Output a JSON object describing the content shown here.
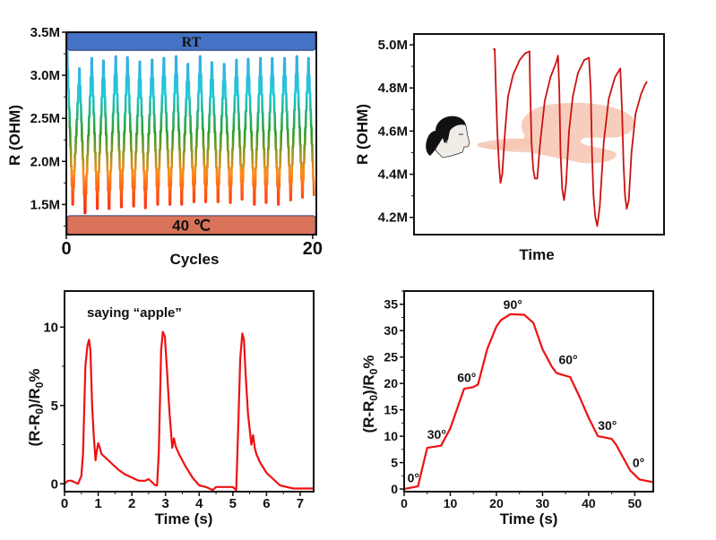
{
  "chart_data": [
    {
      "type": "line",
      "id": "temperature-cycling",
      "title": "",
      "xlabel": "Cycles",
      "ylabel": "R (OHM)",
      "xlim": [
        0,
        20.3
      ],
      "ylim": [
        1.15,
        3.5
      ],
      "x_ticks": [
        {
          "v": 0,
          "label": "0"
        },
        {
          "v": 20,
          "label": "20"
        }
      ],
      "y_ticks": [
        {
          "v": 1.5,
          "label": "1.5M"
        },
        {
          "v": 2.0,
          "label": "2.0M"
        },
        {
          "v": 2.5,
          "label": "2.5M"
        },
        {
          "v": 3.0,
          "label": "3.0M"
        },
        {
          "v": 3.5,
          "label": "3.5M"
        }
      ],
      "bands": [
        {
          "label": "RT",
          "from": 3.29,
          "to": 3.5,
          "color": "#4472c4"
        },
        {
          "label": "40 ℃",
          "from": 1.15,
          "to": 1.37,
          "color": "#d9735a"
        }
      ],
      "gradient": [
        "#ff2010",
        "#ff8c1a",
        "#2e9e2a",
        "#1fc9d8",
        "#3aa8e8"
      ],
      "series": [
        {
          "name": "R",
          "peaks_x": [
            0.05,
            1.05,
            2.05,
            3.0,
            4.0,
            4.95,
            5.95,
            6.95,
            7.9,
            8.9,
            9.85,
            10.85,
            11.8,
            12.8,
            13.8,
            14.75,
            15.75,
            16.7,
            17.7,
            18.7,
            19.65
          ],
          "peaks_y": [
            3.28,
            3.08,
            3.2,
            3.17,
            3.22,
            3.21,
            3.16,
            3.18,
            3.2,
            3.22,
            3.13,
            3.22,
            3.15,
            3.13,
            3.18,
            3.19,
            3.2,
            3.2,
            3.2,
            3.22,
            3.2
          ],
          "valleys_x": [
            0.5,
            1.5,
            2.5,
            3.45,
            4.45,
            5.45,
            6.4,
            7.4,
            8.4,
            9.35,
            10.35,
            11.3,
            12.3,
            13.3,
            14.25,
            15.25,
            16.2,
            17.2,
            18.2,
            19.15,
            20.1
          ],
          "valleys_y": [
            1.5,
            1.4,
            1.45,
            1.45,
            1.47,
            1.48,
            1.46,
            1.5,
            1.5,
            1.5,
            1.53,
            1.53,
            1.53,
            1.52,
            1.56,
            1.5,
            1.52,
            1.5,
            1.55,
            1.58,
            1.6
          ]
        }
      ]
    },
    {
      "type": "line",
      "id": "breathing-response",
      "title": "",
      "xlabel": "Time",
      "ylabel": "R (OHM)",
      "xlim": [
        0,
        100
      ],
      "ylim": [
        4.12,
        5.05
      ],
      "x_ticks": [],
      "y_ticks": [
        {
          "v": 4.2,
          "label": "4.2M"
        },
        {
          "v": 4.4,
          "label": "4.4M"
        },
        {
          "v": 4.6,
          "label": "4.6M"
        },
        {
          "v": 4.8,
          "label": "4.8M"
        },
        {
          "v": 5.0,
          "label": "5.0M"
        }
      ],
      "illustration": "person-breathing-icon",
      "series": [
        {
          "name": "R",
          "color": "#cc1111",
          "x": [
            31.6,
            32.3,
            32.7,
            33.3,
            34.0,
            34.6,
            35.3,
            36.4,
            37.6,
            39.6,
            42.3,
            44.4,
            46.2,
            46.4,
            47.0,
            47.7,
            48.4,
            49.3,
            50.5,
            52.3,
            54.6,
            56.9,
            57.6,
            58.1,
            58.6,
            59.3,
            60.0,
            60.8,
            62.0,
            63.5,
            65.6,
            68.1,
            70.0,
            70.7,
            71.2,
            71.8,
            72.5,
            73.3,
            74.3,
            75.9,
            77.9,
            80.4,
            82.5,
            83.2,
            83.8,
            84.4,
            85.1,
            85.9,
            87.0,
            88.6,
            90.8,
            92.2,
            93.2
          ],
          "y": [
            4.98,
            4.98,
            4.82,
            4.6,
            4.44,
            4.36,
            4.4,
            4.6,
            4.76,
            4.86,
            4.93,
            4.96,
            4.97,
            4.82,
            4.55,
            4.42,
            4.38,
            4.38,
            4.55,
            4.74,
            4.85,
            4.92,
            4.95,
            4.8,
            4.5,
            4.33,
            4.28,
            4.35,
            4.6,
            4.76,
            4.87,
            4.93,
            4.94,
            4.78,
            4.5,
            4.3,
            4.2,
            4.16,
            4.25,
            4.55,
            4.75,
            4.85,
            4.89,
            4.7,
            4.45,
            4.3,
            4.24,
            4.28,
            4.5,
            4.68,
            4.77,
            4.81,
            4.83
          ]
        }
      ]
    },
    {
      "type": "line",
      "id": "speech-response",
      "title": "",
      "annotation": "saying “apple”",
      "xlabel": "Time (s)",
      "ylabel": "(R-R0)/R0%",
      "xlim": [
        0,
        7.4
      ],
      "ylim": [
        -0.5,
        12.3
      ],
      "x_ticks": [
        {
          "v": 0,
          "label": "0"
        },
        {
          "v": 1,
          "label": "1"
        },
        {
          "v": 2,
          "label": "2"
        },
        {
          "v": 3,
          "label": "3"
        },
        {
          "v": 4,
          "label": "4"
        },
        {
          "v": 5,
          "label": "5"
        },
        {
          "v": 6,
          "label": "6"
        },
        {
          "v": 7,
          "label": "7"
        }
      ],
      "y_ticks": [
        {
          "v": 0,
          "label": "0"
        },
        {
          "v": 5,
          "label": "5"
        },
        {
          "v": 10,
          "label": "10"
        }
      ],
      "series": [
        {
          "name": "response",
          "color": "#ee1111",
          "x": [
            0,
            0.1,
            0.2,
            0.3,
            0.4,
            0.5,
            0.55,
            0.62,
            0.68,
            0.73,
            0.77,
            0.82,
            0.87,
            0.92,
            0.95,
            1.0,
            1.05,
            1.1,
            1.2,
            1.4,
            1.6,
            1.8,
            2.0,
            2.2,
            2.4,
            2.5,
            2.6,
            2.7,
            2.75,
            2.8,
            2.87,
            2.92,
            2.98,
            3.05,
            3.12,
            3.2,
            3.25,
            3.3,
            3.4,
            3.6,
            3.8,
            4.0,
            4.2,
            4.4,
            4.5,
            4.7,
            5.0,
            5.1,
            5.15,
            5.22,
            5.28,
            5.33,
            5.38,
            5.45,
            5.55,
            5.6,
            5.65,
            5.7,
            5.8,
            6.0,
            6.2,
            6.4,
            6.6,
            6.8,
            7.0,
            7.4
          ],
          "y": [
            0.0,
            0.2,
            0.2,
            0.1,
            0.0,
            0.5,
            2.0,
            7.5,
            8.8,
            9.2,
            8.5,
            5.0,
            3.0,
            1.5,
            2.0,
            2.6,
            2.3,
            1.9,
            1.7,
            1.3,
            0.9,
            0.6,
            0.4,
            0.2,
            0.2,
            0.3,
            0.1,
            -0.1,
            -0.1,
            2.0,
            8.5,
            9.7,
            9.4,
            7.0,
            4.5,
            2.3,
            2.9,
            2.4,
            1.9,
            1.1,
            0.4,
            -0.1,
            -0.2,
            -0.4,
            -0.2,
            -0.2,
            -0.2,
            -0.4,
            3.0,
            8.0,
            9.6,
            9.2,
            7.0,
            4.5,
            2.5,
            3.1,
            2.3,
            1.9,
            1.4,
            0.7,
            0.3,
            -0.1,
            -0.2,
            -0.3,
            -0.3,
            -0.3
          ]
        }
      ]
    },
    {
      "type": "line",
      "id": "bending-response",
      "title": "",
      "xlabel": "Time (s)",
      "ylabel": "(R-R0)/R0%",
      "xlim": [
        0,
        54
      ],
      "ylim": [
        -0.5,
        37.5
      ],
      "x_ticks": [
        {
          "v": 0,
          "label": "0"
        },
        {
          "v": 10,
          "label": "10"
        },
        {
          "v": 20,
          "label": "20"
        },
        {
          "v": 30,
          "label": "30"
        },
        {
          "v": 40,
          "label": "40"
        },
        {
          "v": 50,
          "label": "50"
        }
      ],
      "y_ticks": [
        {
          "v": 0,
          "label": "0"
        },
        {
          "v": 5,
          "label": "5"
        },
        {
          "v": 10,
          "label": "10"
        },
        {
          "v": 15,
          "label": "15"
        },
        {
          "v": 20,
          "label": "20"
        },
        {
          "v": 25,
          "label": "25"
        },
        {
          "v": 30,
          "label": "30"
        },
        {
          "v": 35,
          "label": "35"
        }
      ],
      "annotations": [
        {
          "text": "0°",
          "x": 0.7,
          "y": 1.3
        },
        {
          "text": "30°",
          "x": 5,
          "y": 9.5
        },
        {
          "text": "60°",
          "x": 11.5,
          "y": 20.3
        },
        {
          "text": "90°",
          "x": 21.5,
          "y": 34.1
        },
        {
          "text": "60°",
          "x": 33.5,
          "y": 23.7
        },
        {
          "text": "30°",
          "x": 42,
          "y": 11.2
        },
        {
          "text": "0°",
          "x": 49.5,
          "y": 4.2
        }
      ],
      "series": [
        {
          "name": "response",
          "color": "#ee1111",
          "x": [
            0,
            3,
            5,
            8,
            10,
            12,
            13,
            15,
            16,
            18,
            20,
            21,
            23,
            26,
            28,
            30,
            32,
            33,
            34,
            36,
            38,
            40,
            42,
            45,
            46,
            49,
            51,
            54
          ],
          "y": [
            0,
            0.5,
            7.8,
            8.2,
            11.5,
            16.5,
            19.0,
            19.3,
            19.8,
            26.5,
            30.8,
            32.0,
            33.1,
            33.0,
            31.5,
            26.5,
            23.2,
            22.0,
            21.7,
            21.2,
            17.5,
            13.5,
            10.0,
            9.5,
            8.3,
            3.5,
            1.8,
            1.3
          ]
        }
      ]
    }
  ]
}
